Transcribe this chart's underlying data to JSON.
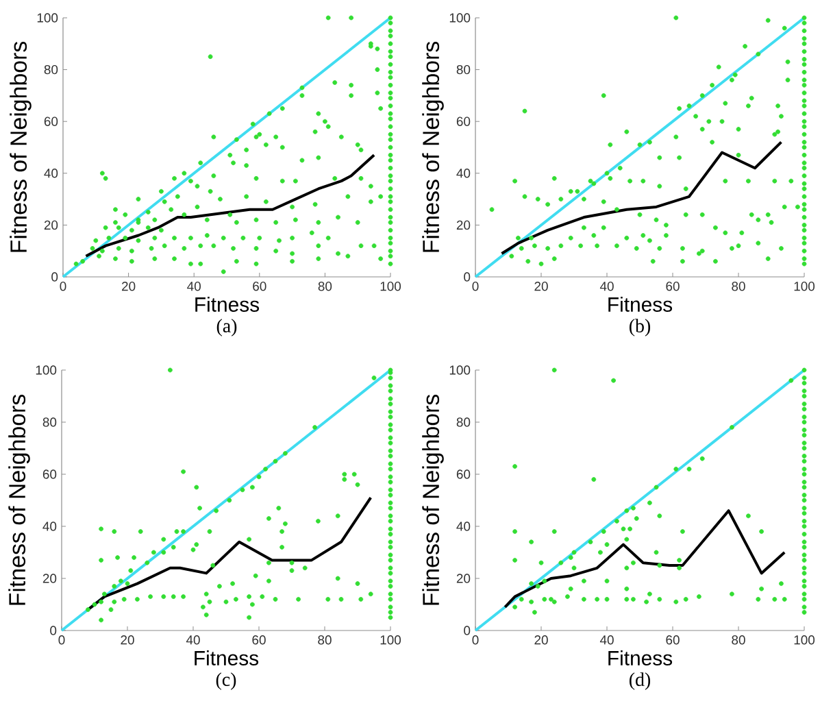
{
  "chart_data": [
    {
      "type": "scatter",
      "xlabel": "Fitness",
      "ylabel": "Fitness of Neighbors",
      "annotations": [
        "(a)"
      ],
      "xlim": [
        0,
        100
      ],
      "ylim": [
        0,
        100
      ],
      "xticks": [
        0,
        20,
        40,
        60,
        80,
        100
      ],
      "yticks": [
        0,
        20,
        40,
        60,
        80,
        100
      ],
      "series": [
        {
          "type": "scatter",
          "color": "#33dd33",
          "marker": "circle",
          "x": [
            81,
            88,
            45,
            94,
            94,
            96,
            96,
            83,
            88,
            73,
            73,
            67,
            63,
            78,
            80,
            96,
            97,
            88,
            58,
            60,
            65,
            53,
            46,
            77,
            81,
            85,
            67,
            52,
            56,
            42,
            73,
            78,
            12,
            13,
            34,
            37,
            46,
            59,
            67,
            83,
            91,
            94,
            41,
            30,
            23,
            31,
            35,
            48,
            56,
            62,
            70,
            77,
            87,
            94,
            97,
            16,
            19,
            26,
            28,
            37,
            44,
            51,
            53,
            59,
            65,
            71,
            78,
            84,
            90,
            81,
            76,
            70,
            66,
            60,
            55,
            49,
            44,
            39,
            34,
            28,
            23,
            19,
            14,
            10,
            9,
            12,
            17,
            21,
            27,
            31,
            37,
            42,
            46,
            52,
            59,
            65,
            70,
            78,
            84,
            91,
            95,
            97,
            87,
            78,
            70,
            59,
            53,
            49,
            42,
            39,
            34,
            28,
            21,
            16,
            6,
            4,
            11,
            17,
            21,
            26,
            30,
            13,
            16,
            23,
            33,
            41,
            45,
            56,
            62,
            71,
            90,
            91,
            23,
            39,
            51,
            59
          ],
          "values": [
            100,
            100,
            85,
            90,
            89,
            88,
            80,
            75,
            74,
            73,
            70,
            65,
            63,
            63,
            60,
            71,
            65,
            70,
            59,
            55,
            54,
            53,
            54,
            56,
            58,
            54,
            50,
            44,
            43,
            44,
            45,
            46,
            40,
            38,
            38,
            40,
            39,
            38,
            37,
            38,
            38,
            35,
            35,
            33,
            30,
            29,
            31,
            30,
            31,
            29,
            27,
            28,
            31,
            29,
            31,
            26,
            24,
            25,
            22,
            24,
            22,
            24,
            21,
            22,
            21,
            22,
            21,
            23,
            21,
            15,
            17,
            15,
            14,
            15,
            15,
            15,
            16,
            15,
            15,
            15,
            14,
            15,
            15,
            14,
            11,
            10,
            11,
            10,
            11,
            12,
            11,
            12,
            12,
            11,
            11,
            10,
            9,
            12,
            9,
            12,
            12,
            7,
            8,
            7,
            6,
            5,
            6,
            2,
            5,
            5,
            7,
            7,
            6,
            7,
            6,
            5,
            8,
            19,
            18,
            19,
            18,
            19,
            21,
            22,
            26,
            27,
            33,
            49,
            51,
            37,
            51,
            49,
            21,
            37,
            47,
            54
          ]
        },
        {
          "type": "scatter",
          "color": "#33dd33",
          "marker": "circle",
          "x": [
            100,
            100,
            100,
            100,
            100,
            100,
            100,
            100,
            100,
            100,
            100,
            100,
            100,
            100,
            100,
            100,
            100,
            100,
            100,
            100,
            100,
            100,
            100,
            100,
            100,
            100,
            100,
            100,
            100,
            100,
            100,
            100,
            100,
            100,
            100,
            100,
            100
          ],
          "values": [
            5,
            8,
            10,
            13,
            15,
            18,
            21,
            23,
            26,
            29,
            31,
            34,
            37,
            39,
            42,
            45,
            47,
            50,
            53,
            55,
            58,
            61,
            63,
            66,
            69,
            71,
            74,
            77,
            79,
            82,
            85,
            87,
            90,
            93,
            95,
            98,
            100
          ]
        },
        {
          "type": "line",
          "color": "#40dcf0",
          "x": [
            0,
            100
          ],
          "values": [
            0,
            100
          ]
        },
        {
          "type": "line",
          "color": "#000000",
          "x": [
            7,
            13,
            23,
            29,
            35,
            39,
            51,
            57,
            64,
            71,
            78,
            85,
            88,
            95
          ],
          "values": [
            8,
            12,
            16,
            19,
            23,
            23,
            25,
            26,
            26,
            30,
            34,
            37,
            39,
            47
          ]
        }
      ]
    },
    {
      "type": "scatter",
      "xlabel": "Fitness",
      "ylabel": "Fitness of Neighbors",
      "annotations": [
        "(b)"
      ],
      "xlim": [
        0,
        100
      ],
      "ylim": [
        0,
        100
      ],
      "xticks": [
        0,
        20,
        40,
        60,
        80,
        100
      ],
      "yticks": [
        0,
        20,
        40,
        60,
        80,
        100
      ],
      "series": [
        {
          "type": "scatter",
          "color": "#33dd33",
          "marker": "circle",
          "x": [
            61,
            89,
            94,
            82,
            86,
            95,
            95,
            74,
            79,
            78,
            72,
            69,
            84,
            39,
            15,
            62,
            65,
            67,
            76,
            83,
            92,
            93,
            71,
            75,
            80,
            69,
            46,
            61,
            50,
            53,
            41,
            56,
            62,
            72,
            80,
            91,
            92,
            44,
            47,
            51,
            56,
            64,
            76,
            83,
            91,
            96,
            41,
            36,
            31,
            24,
            12,
            15,
            19,
            22,
            26,
            33,
            39,
            43,
            50,
            55,
            58,
            64,
            69,
            73,
            76,
            81,
            86,
            90,
            94,
            98,
            89,
            84,
            80,
            86,
            93,
            89,
            69,
            78,
            73,
            68,
            63,
            63,
            56,
            54,
            49,
            43,
            37,
            32,
            26,
            22,
            18,
            14,
            11,
            16,
            20,
            24,
            5,
            13,
            17,
            29,
            36,
            39,
            33,
            46,
            51,
            58,
            53,
            29,
            35,
            40
          ],
          "values": [
            100,
            99,
            96,
            89,
            86,
            83,
            76,
            81,
            78,
            76,
            74,
            70,
            69,
            70,
            64,
            65,
            66,
            62,
            67,
            66,
            66,
            62,
            60,
            60,
            57,
            57,
            56,
            54,
            51,
            52,
            51,
            46,
            46,
            52,
            47,
            55,
            56,
            42,
            37,
            37,
            35,
            34,
            37,
            37,
            37,
            37,
            38,
            36,
            33,
            38,
            37,
            31,
            30,
            28,
            30,
            30,
            29,
            26,
            24,
            22,
            20,
            24,
            24,
            19,
            17,
            17,
            22,
            21,
            27,
            27,
            24,
            24,
            12,
            13,
            11,
            7,
            10,
            11,
            6,
            9,
            11,
            6,
            11,
            6,
            11,
            12,
            12,
            12,
            12,
            11,
            12,
            11,
            8,
            6,
            5,
            7,
            26,
            15,
            15,
            15,
            16,
            19,
            19,
            15,
            16,
            16,
            14,
            33,
            37,
            40
          ]
        },
        {
          "type": "scatter",
          "color": "#33dd33",
          "marker": "circle",
          "x": [
            100,
            100,
            100,
            100,
            100,
            100,
            100,
            100,
            100,
            100,
            100,
            100,
            100,
            100,
            100,
            100,
            100,
            100,
            100,
            100,
            100,
            100,
            100,
            100,
            100,
            100,
            100,
            100,
            100,
            100,
            100,
            100,
            100,
            100,
            100,
            100,
            100
          ],
          "values": [
            5,
            7,
            10,
            13,
            15,
            18,
            20,
            23,
            26,
            28,
            31,
            34,
            36,
            39,
            42,
            44,
            47,
            50,
            52,
            55,
            58,
            60,
            63,
            66,
            68,
            71,
            74,
            76,
            79,
            82,
            84,
            87,
            90,
            92,
            95,
            98,
            100
          ]
        },
        {
          "type": "line",
          "color": "#40dcf0",
          "x": [
            0,
            100
          ],
          "values": [
            0,
            100
          ]
        },
        {
          "type": "line",
          "color": "#000000",
          "x": [
            8,
            13,
            22,
            33,
            46,
            55,
            65,
            75,
            85,
            93
          ],
          "values": [
            9,
            13,
            18,
            23,
            26,
            27,
            31,
            48,
            42,
            52
          ]
        }
      ]
    },
    {
      "type": "scatter",
      "xlabel": "Fitness",
      "ylabel": "Fitness of Neighbors",
      "annotations": [
        "(c)"
      ],
      "xlim": [
        0,
        100
      ],
      "ylim": [
        0,
        100
      ],
      "xticks": [
        0,
        20,
        40,
        60,
        80,
        100
      ],
      "yticks": [
        0,
        20,
        40,
        60,
        80,
        100
      ],
      "series": [
        {
          "type": "scatter",
          "color": "#33dd33",
          "marker": "circle",
          "x": [
            33,
            95,
            77,
            68,
            65,
            62,
            60,
            37,
            41,
            58,
            55,
            51,
            47,
            66,
            86,
            86,
            89,
            90,
            84,
            78,
            68,
            63,
            67,
            42,
            37,
            41,
            45,
            35,
            31,
            12,
            16,
            24,
            17,
            12,
            22,
            40,
            34,
            31,
            46,
            57,
            59,
            63,
            67,
            70,
            70,
            74,
            84,
            90,
            94,
            91,
            85,
            81,
            72,
            65,
            61,
            57,
            53,
            50,
            48,
            44,
            43,
            45,
            44,
            57,
            58,
            37,
            34,
            31,
            27,
            23,
            19,
            16,
            12,
            12,
            15,
            10,
            8,
            18,
            21,
            26,
            28,
            13,
            16,
            20,
            52,
            63
          ],
          "values": [
            100,
            97,
            78,
            68,
            65,
            62,
            59,
            61,
            55,
            55,
            54,
            50,
            46,
            47,
            60,
            58,
            60,
            56,
            44,
            42,
            41,
            43,
            38,
            47,
            38,
            33,
            38,
            38,
            35,
            39,
            38,
            38,
            28,
            27,
            28,
            31,
            32,
            30,
            25,
            35,
            21,
            26,
            32,
            26,
            23,
            24,
            20,
            18,
            14,
            12,
            12,
            12,
            12,
            12,
            13,
            13,
            12,
            11,
            17,
            14,
            9,
            11,
            6,
            5,
            10,
            13,
            13,
            13,
            13,
            12,
            12,
            11,
            11,
            4,
            8,
            10,
            8,
            19,
            23,
            26,
            30,
            14,
            17,
            18,
            18,
            19
          ]
        },
        {
          "type": "scatter",
          "color": "#33dd33",
          "marker": "circle",
          "x": [
            100,
            100,
            100,
            100,
            100,
            100,
            100,
            100,
            100,
            100,
            100,
            100,
            100,
            100,
            100,
            100,
            100,
            100,
            100,
            100,
            100,
            100,
            100,
            100,
            100,
            100,
            100,
            100,
            100,
            100,
            100,
            100,
            100,
            100,
            100,
            100,
            100,
            100,
            100,
            100
          ],
          "values": [
            5,
            7,
            9,
            12,
            14,
            17,
            19,
            22,
            24,
            27,
            29,
            32,
            34,
            37,
            39,
            42,
            44,
            47,
            49,
            52,
            54,
            57,
            59,
            62,
            64,
            67,
            69,
            72,
            74,
            77,
            79,
            82,
            84,
            87,
            89,
            92,
            94,
            97,
            99,
            100
          ]
        },
        {
          "type": "line",
          "color": "#40dcf0",
          "x": [
            0,
            100
          ],
          "values": [
            0,
            100
          ]
        },
        {
          "type": "line",
          "color": "#000000",
          "x": [
            8,
            13,
            23,
            33,
            36,
            44,
            54,
            64,
            76,
            85,
            94
          ],
          "values": [
            8,
            13,
            18,
            24,
            24,
            22,
            34,
            27,
            27,
            34,
            51
          ]
        }
      ]
    },
    {
      "type": "scatter",
      "xlabel": "Fitness",
      "ylabel": "Fitness of Neighbors",
      "annotations": [
        "(d)"
      ],
      "xlim": [
        0,
        100
      ],
      "ylim": [
        0,
        100
      ],
      "xticks": [
        0,
        20,
        40,
        60,
        80,
        100
      ],
      "yticks": [
        0,
        20,
        40,
        60,
        80,
        100
      ],
      "series": [
        {
          "type": "scatter",
          "color": "#33dd33",
          "marker": "circle",
          "x": [
            24,
            42,
            96,
            78,
            69,
            65,
            61,
            12,
            36,
            55,
            53,
            49,
            56,
            83,
            87,
            12,
            24,
            45,
            47,
            63,
            17,
            12,
            20,
            29,
            30,
            33,
            40,
            40,
            38,
            46,
            46,
            48,
            55,
            56,
            62,
            62,
            87,
            93,
            91,
            94,
            86,
            78,
            68,
            64,
            61,
            56,
            53,
            52,
            48,
            46,
            46,
            40,
            37,
            33,
            28,
            29,
            23,
            21,
            17,
            14,
            12,
            18,
            24,
            17,
            19,
            21,
            26,
            30,
            35,
            39,
            43,
            46,
            48
          ],
          "values": [
            100,
            96,
            96,
            78,
            66,
            62,
            62,
            63,
            58,
            55,
            49,
            43,
            44,
            44,
            38,
            38,
            38,
            39,
            39,
            38,
            34,
            27,
            26,
            28,
            24,
            19,
            19,
            33,
            30,
            35,
            24,
            26,
            30,
            25,
            24,
            27,
            16,
            18,
            12,
            12,
            12,
            14,
            13,
            12,
            11,
            12,
            14,
            11,
            12,
            12,
            16,
            12,
            12,
            12,
            13,
            16,
            12,
            12,
            11,
            12,
            9,
            7,
            11,
            18,
            17,
            19,
            26,
            30,
            34,
            38,
            42,
            46,
            47
          ]
        },
        {
          "type": "scatter",
          "color": "#33dd33",
          "marker": "circle",
          "x": [
            100,
            100,
            100,
            100,
            100,
            100,
            100,
            100,
            100,
            100,
            100,
            100,
            100,
            100,
            100,
            100,
            100,
            100,
            100,
            100,
            100,
            100,
            100,
            100,
            100,
            100,
            100,
            100,
            100,
            100,
            100,
            100,
            100,
            100,
            100,
            100,
            100,
            100
          ],
          "values": [
            7,
            9,
            12,
            14,
            17,
            19,
            22,
            24,
            27,
            29,
            32,
            34,
            37,
            40,
            42,
            45,
            47,
            50,
            52,
            55,
            57,
            60,
            62,
            65,
            67,
            70,
            72,
            75,
            77,
            80,
            82,
            85,
            87,
            90,
            92,
            95,
            97,
            100
          ]
        },
        {
          "type": "line",
          "color": "#40dcf0",
          "x": [
            0,
            100
          ],
          "values": [
            0,
            100
          ]
        },
        {
          "type": "line",
          "color": "#000000",
          "x": [
            9,
            12,
            23,
            29,
            37,
            45,
            51,
            59,
            63,
            77,
            87,
            94
          ],
          "values": [
            9,
            13,
            20,
            21,
            24,
            33,
            26,
            25,
            25,
            46,
            22,
            30
          ]
        }
      ]
    }
  ]
}
